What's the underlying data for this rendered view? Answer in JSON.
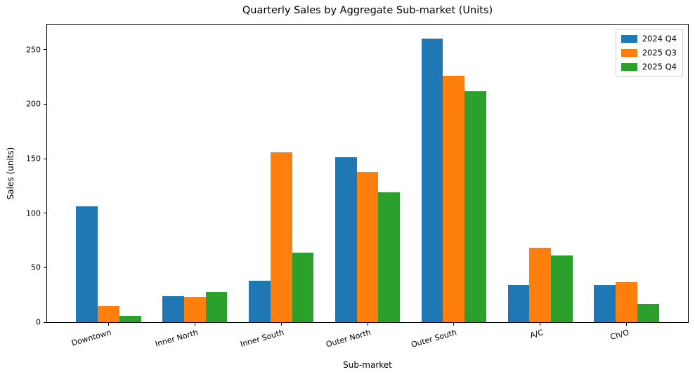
{
  "chart_data": {
    "type": "bar",
    "title": "Quarterly Sales by Aggregate Sub-market (Units)",
    "xlabel": "Sub-market",
    "ylabel": "Sales (units)",
    "categories": [
      "Downtown",
      "Inner North",
      "Inner South",
      "Outer North",
      "Outer South",
      "A/C",
      "Ch/O"
    ],
    "series": [
      {
        "name": "2024 Q4",
        "color": "#1f77b4",
        "values": [
          106,
          24,
          38,
          151,
          260,
          34,
          34
        ]
      },
      {
        "name": "2025 Q3",
        "color": "#ff7f0e",
        "values": [
          15,
          23,
          156,
          138,
          226,
          68,
          37
        ]
      },
      {
        "name": "2025 Q4",
        "color": "#2ca02c",
        "values": [
          6,
          28,
          64,
          119,
          212,
          61,
          17
        ]
      }
    ],
    "yticks": [
      0,
      50,
      100,
      150,
      200,
      250
    ],
    "ylim": [
      0,
      273
    ],
    "grid": false,
    "legend_position": "upper right",
    "bar_group_width_units": 0.75,
    "x_axis_label_rotation_deg": 16
  }
}
